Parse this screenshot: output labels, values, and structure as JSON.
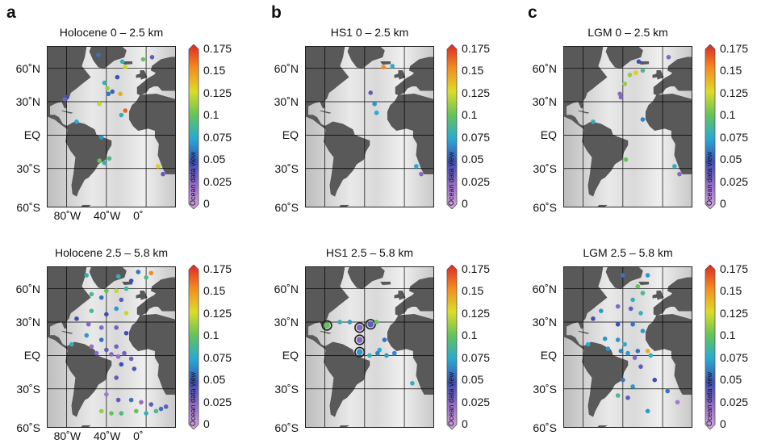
{
  "panels": [
    {
      "letter": "a",
      "maps": [
        {
          "title": "Holocene 0 – 2.5 km",
          "lat_labels": [
            "60˚N",
            "30˚N",
            "EQ",
            "30˚S",
            "60˚S"
          ],
          "lon_labels": [
            "80˚W",
            "40˚W",
            "0˚"
          ],
          "points": [
            {
              "lon": -48,
              "lat": 72,
              "value": 0.06
            },
            {
              "lon": -24,
              "lat": 66,
              "value": 0.08
            },
            {
              "lon": -3,
              "lat": 68,
              "value": 0.1
            },
            {
              "lon": 6,
              "lat": 70,
              "value": 0.04
            },
            {
              "lon": -21,
              "lat": 61,
              "value": 0.12
            },
            {
              "lon": -29,
              "lat": 52,
              "value": 0.05
            },
            {
              "lon": -42,
              "lat": 47,
              "value": 0.08
            },
            {
              "lon": -39,
              "lat": 42,
              "value": 0.11
            },
            {
              "lon": -34,
              "lat": 39,
              "value": 0.055
            },
            {
              "lon": -38,
              "lat": 37,
              "value": 0.06
            },
            {
              "lon": -26,
              "lat": 37,
              "value": 0.14
            },
            {
              "lon": -80,
              "lat": 34,
              "value": 0.05
            },
            {
              "lon": -82,
              "lat": 32,
              "value": 0.035
            },
            {
              "lon": -47,
              "lat": 28,
              "value": 0.12
            },
            {
              "lon": -21,
              "lat": 22,
              "value": 0.16
            },
            {
              "lon": -25,
              "lat": 18,
              "value": 0.08
            },
            {
              "lon": -70,
              "lat": 12,
              "value": 0.075
            },
            {
              "lon": -45,
              "lat": -2,
              "value": 0.07
            },
            {
              "lon": -37,
              "lat": -21,
              "value": 0.09
            },
            {
              "lon": -47,
              "lat": -23,
              "value": 0.1
            },
            {
              "lon": -42,
              "lat": -25,
              "value": 0.08
            },
            {
              "lon": 12,
              "lat": -28,
              "value": 0.13
            },
            {
              "lon": 17,
              "lat": -35,
              "value": 0.04
            }
          ]
        },
        {
          "title": "Holocene 2.5 – 5.8 km",
          "lat_labels": [
            "60˚N",
            "30˚N",
            "EQ",
            "30˚S",
            "60˚S"
          ],
          "lon_labels": [
            "80˚W",
            "40˚W",
            "0˚"
          ],
          "points": [
            {
              "lon": -60,
              "lat": 72,
              "value": 0.08
            },
            {
              "lon": -28,
              "lat": 71,
              "value": 0.08
            },
            {
              "lon": -8,
              "lat": 75,
              "value": 0.06
            },
            {
              "lon": 5,
              "lat": 74,
              "value": 0.15
            },
            {
              "lon": 0,
              "lat": 70,
              "value": 0.09
            },
            {
              "lon": -15,
              "lat": 67,
              "value": 0.05
            },
            {
              "lon": -40,
              "lat": 58,
              "value": 0.1
            },
            {
              "lon": -30,
              "lat": 58,
              "value": 0.12
            },
            {
              "lon": -20,
              "lat": 60,
              "value": 0.085
            },
            {
              "lon": -55,
              "lat": 55,
              "value": 0.09
            },
            {
              "lon": -45,
              "lat": 52,
              "value": 0.06
            },
            {
              "lon": -25,
              "lat": 50,
              "value": 0.04
            },
            {
              "lon": -30,
              "lat": 42,
              "value": 0.07
            },
            {
              "lon": -55,
              "lat": 40,
              "value": 0.09
            },
            {
              "lon": -40,
              "lat": 37,
              "value": 0.05
            },
            {
              "lon": -20,
              "lat": 38,
              "value": 0.12
            },
            {
              "lon": -70,
              "lat": 33,
              "value": 0.05
            },
            {
              "lon": -58,
              "lat": 28,
              "value": 0.03
            },
            {
              "lon": -45,
              "lat": 25,
              "value": 0.03
            },
            {
              "lon": -30,
              "lat": 25,
              "value": 0.035
            },
            {
              "lon": -20,
              "lat": 20,
              "value": 0.05
            },
            {
              "lon": -60,
              "lat": 18,
              "value": 0.07
            },
            {
              "lon": -45,
              "lat": 14,
              "value": 0.06
            },
            {
              "lon": -75,
              "lat": 10,
              "value": 0.08
            },
            {
              "lon": -55,
              "lat": 8,
              "value": 0.025
            },
            {
              "lon": -30,
              "lat": 8,
              "value": 0.035
            },
            {
              "lon": -40,
              "lat": 5,
              "value": 0.04
            },
            {
              "lon": -50,
              "lat": 2,
              "value": 0.03
            },
            {
              "lon": -35,
              "lat": 1,
              "value": 0.03
            },
            {
              "lon": -28,
              "lat": -1,
              "value": 0.025
            },
            {
              "lon": -22,
              "lat": 2,
              "value": 0.035
            },
            {
              "lon": -15,
              "lat": -3,
              "value": 0.035
            },
            {
              "lon": -25,
              "lat": -8,
              "value": 0.05
            },
            {
              "lon": -12,
              "lat": -12,
              "value": 0.045
            },
            {
              "lon": -30,
              "lat": -20,
              "value": 0.04
            },
            {
              "lon": -40,
              "lat": -35,
              "value": 0.02
            },
            {
              "lon": -28,
              "lat": -40,
              "value": 0.04
            },
            {
              "lon": -15,
              "lat": -40,
              "value": 0.06
            },
            {
              "lon": -5,
              "lat": -42,
              "value": 0.025
            },
            {
              "lon": 5,
              "lat": -44,
              "value": 0.04
            },
            {
              "lon": -45,
              "lat": -50,
              "value": 0.11
            },
            {
              "lon": -35,
              "lat": -52,
              "value": 0.1
            },
            {
              "lon": -25,
              "lat": -52,
              "value": 0.09
            },
            {
              "lon": -10,
              "lat": -50,
              "value": 0.1
            },
            {
              "lon": 0,
              "lat": -52,
              "value": 0.08
            },
            {
              "lon": 10,
              "lat": -50,
              "value": 0.09
            },
            {
              "lon": 15,
              "lat": -48,
              "value": 0.06
            },
            {
              "lon": 20,
              "lat": -46,
              "value": 0.04
            }
          ]
        }
      ]
    },
    {
      "letter": "b",
      "maps": [
        {
          "title": "HS1 0 – 2.5 km",
          "lat_labels": [
            "60˚N",
            "30˚N",
            "EQ",
            "30˚S",
            "60˚S"
          ],
          "lon_labels": [],
          "points": [
            {
              "lon": -21,
              "lat": 61,
              "value": 0.15
            },
            {
              "lon": -12,
              "lat": 62,
              "value": 0.08
            },
            {
              "lon": -34,
              "lat": 38,
              "value": 0.04
            },
            {
              "lon": -30,
              "lat": 28,
              "value": 0.07
            },
            {
              "lon": -28,
              "lat": 20,
              "value": 0.075
            },
            {
              "lon": 12,
              "lat": -28,
              "value": 0.075
            },
            {
              "lon": 17,
              "lat": -35,
              "value": 0.03
            }
          ]
        },
        {
          "title": "HS1 2.5 – 5.8 km",
          "lat_labels": [
            "60˚N",
            "30˚N",
            "EQ",
            "30˚S",
            "60˚S"
          ],
          "lon_labels": [],
          "points": [
            {
              "lon": -78,
              "lat": 27,
              "value": 0.1,
              "circled": true
            },
            {
              "lon": -45,
              "lat": 25,
              "value": 0.03,
              "circled": true
            },
            {
              "lon": -34,
              "lat": 28,
              "value": 0.04,
              "circled": true
            },
            {
              "lon": -45,
              "lat": 14,
              "value": 0.03,
              "circled": true
            },
            {
              "lon": -45,
              "lat": 3,
              "value": 0.07,
              "circled": true
            },
            {
              "lon": -65,
              "lat": 30,
              "value": 0.08
            },
            {
              "lon": -55,
              "lat": 30,
              "value": 0.07
            },
            {
              "lon": -28,
              "lat": 30,
              "value": 0.1
            },
            {
              "lon": -20,
              "lat": 14,
              "value": 0.06
            },
            {
              "lon": -25,
              "lat": 5,
              "value": 0.075
            },
            {
              "lon": -35,
              "lat": 0,
              "value": 0.08
            },
            {
              "lon": -27,
              "lat": 2,
              "value": 0.065
            },
            {
              "lon": -18,
              "lat": 0,
              "value": 0.07
            },
            {
              "lon": -10,
              "lat": 2,
              "value": 0.065
            },
            {
              "lon": 8,
              "lat": -25,
              "value": 0.08
            }
          ]
        }
      ]
    },
    {
      "letter": "c",
      "maps": [
        {
          "title": "LGM 0 – 2.5 km",
          "lat_labels": [
            "60˚N",
            "30˚N",
            "EQ",
            "30˚S",
            "60˚S"
          ],
          "lon_labels": [],
          "points": [
            {
              "lon": 6,
              "lat": 70,
              "value": 0.03
            },
            {
              "lon": -24,
              "lat": 66,
              "value": 0.05
            },
            {
              "lon": -33,
              "lat": 54,
              "value": 0.11
            },
            {
              "lon": -27,
              "lat": 56,
              "value": 0.13
            },
            {
              "lon": -20,
              "lat": 58,
              "value": 0.09
            },
            {
              "lon": -38,
              "lat": 46,
              "value": 0.11
            },
            {
              "lon": -43,
              "lat": 37,
              "value": 0.03
            },
            {
              "lon": -42,
              "lat": 34,
              "value": 0.03
            },
            {
              "lon": -70,
              "lat": 12,
              "value": 0.08
            },
            {
              "lon": -20,
              "lat": 14,
              "value": 0.065
            },
            {
              "lon": -37,
              "lat": -22,
              "value": 0.1
            },
            {
              "lon": 12,
              "lat": -28,
              "value": 0.08
            },
            {
              "lon": 17,
              "lat": -35,
              "value": 0.03
            }
          ]
        },
        {
          "title": "LGM 2.5 – 5.8 km",
          "lat_labels": [
            "60˚N",
            "30˚N",
            "EQ",
            "30˚S",
            "60˚S"
          ],
          "lon_labels": [],
          "points": [
            {
              "lon": -40,
              "lat": 72,
              "value": 0.06
            },
            {
              "lon": -15,
              "lat": 72,
              "value": 0.07
            },
            {
              "lon": -25,
              "lat": 62,
              "value": 0.1
            },
            {
              "lon": -20,
              "lat": 56,
              "value": 0.09
            },
            {
              "lon": -30,
              "lat": 50,
              "value": 0.08
            },
            {
              "lon": -45,
              "lat": 44,
              "value": 0.03
            },
            {
              "lon": -32,
              "lat": 42,
              "value": 0.04
            },
            {
              "lon": -62,
              "lat": 40,
              "value": 0.07
            },
            {
              "lon": -22,
              "lat": 38,
              "value": 0.08
            },
            {
              "lon": -70,
              "lat": 33,
              "value": 0.05
            },
            {
              "lon": -45,
              "lat": 28,
              "value": 0.05
            },
            {
              "lon": -30,
              "lat": 28,
              "value": 0.06
            },
            {
              "lon": -20,
              "lat": 22,
              "value": 0.07
            },
            {
              "lon": -58,
              "lat": 15,
              "value": 0.07
            },
            {
              "lon": -45,
              "lat": 14,
              "value": 0.07
            },
            {
              "lon": -38,
              "lat": 10,
              "value": 0.08
            },
            {
              "lon": -75,
              "lat": 10,
              "value": 0.075
            },
            {
              "lon": -55,
              "lat": 6,
              "value": 0.07
            },
            {
              "lon": -42,
              "lat": 4,
              "value": 0.065
            },
            {
              "lon": -35,
              "lat": 2,
              "value": 0.07
            },
            {
              "lon": -25,
              "lat": 4,
              "value": 0.06
            },
            {
              "lon": -15,
              "lat": 4,
              "value": 0.14
            },
            {
              "lon": -12,
              "lat": 0,
              "value": 0.08
            },
            {
              "lon": -28,
              "lat": -2,
              "value": 0.03
            },
            {
              "lon": -22,
              "lat": -10,
              "value": 0.04
            },
            {
              "lon": -40,
              "lat": -22,
              "value": 0.06
            },
            {
              "lon": -30,
              "lat": -28,
              "value": 0.07
            },
            {
              "lon": -8,
              "lat": -22,
              "value": 0.05
            },
            {
              "lon": -45,
              "lat": -36,
              "value": 0.09
            },
            {
              "lon": -35,
              "lat": -38,
              "value": 0.04
            },
            {
              "lon": 5,
              "lat": -32,
              "value": 0.06
            },
            {
              "lon": 15,
              "lat": -42,
              "value": 0.02
            },
            {
              "lon": -15,
              "lat": -50,
              "value": 0.07
            }
          ]
        }
      ]
    }
  ],
  "colorbar": {
    "ticks": [
      "0.175",
      "0.15",
      "0.125",
      "0.1",
      "0.075",
      "0.05",
      "0.025",
      "0"
    ],
    "title": "Ocean data view"
  },
  "colors": {
    "land": "#595959",
    "ocean_shallow": "#cfcfcf",
    "ocean_deep": "#f0f0f0",
    "grid": "#000000"
  }
}
